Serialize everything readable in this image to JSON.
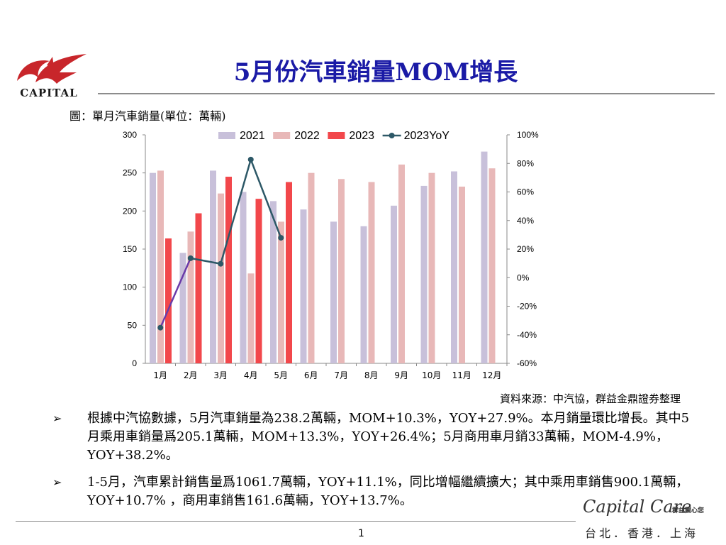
{
  "header": {
    "logo_text": "CAPITAL",
    "title": "5月份汽車銷量MOM增長",
    "subtitle": "圖：單月汽車銷量(單位：萬輛)"
  },
  "chart_data": {
    "type": "bar",
    "title": "",
    "categories": [
      "1月",
      "2月",
      "3月",
      "4月",
      "5月",
      "6月",
      "7月",
      "8月",
      "9月",
      "10月",
      "11月",
      "12月"
    ],
    "series": [
      {
        "name": "2021",
        "type": "bar",
        "color": "#c8c0da",
        "values": [
          250,
          145,
          253,
          225,
          213,
          202,
          186,
          180,
          207,
          233,
          252,
          278
        ]
      },
      {
        "name": "2022",
        "type": "bar",
        "color": "#e8b8b8",
        "values": [
          253,
          173,
          223,
          118,
          186,
          250,
          242,
          238,
          261,
          250,
          232,
          256
        ]
      },
      {
        "name": "2023",
        "type": "bar",
        "color": "#f2474b",
        "values": [
          164,
          197,
          245,
          216,
          238,
          null,
          null,
          null,
          null,
          null,
          null,
          null
        ]
      },
      {
        "name": "2023YoY",
        "type": "line",
        "axis": "right",
        "color": "#2d5867",
        "values": [
          -35,
          13.6,
          9.7,
          82.7,
          27.9,
          null,
          null,
          null,
          null,
          null,
          null,
          null
        ]
      }
    ],
    "y_left": {
      "min": 0,
      "max": 300,
      "ticks": [
        "0",
        "50",
        "100",
        "150",
        "200",
        "250",
        "300"
      ]
    },
    "y_right": {
      "min": -60,
      "max": 100,
      "ticks": [
        "-60%",
        "-40%",
        "-20%",
        "0%",
        "20%",
        "40%",
        "60%",
        "80%",
        "100%"
      ]
    },
    "grid": false,
    "legend_position": "top"
  },
  "source_text": "資料來源：中汽協，群益金鼎證券整理",
  "bullets": [
    {
      "marker": "➢",
      "text": "根據中汽協數據，5月汽車銷量為238.2萬輛，MOM+10.3%，YOY+27.9%。本月銷量環比增長。其中5月乘用車銷量爲205.1萬輛，MOM+13.3%，YOY+26.4%；5月商用車月銷33萬輛，MOM-4.9%，YOY+38.2%。"
    },
    {
      "marker": "➢",
      "text": "1-5月，汽車累計銷售量爲1061.7萬輛，YOY+11.1%，同比增幅繼續擴大；其中乘用車銷售900.1萬輛，YOY+10.7% ，商用車銷售161.6萬輛，YOY+13.7%。"
    }
  ],
  "footer": {
    "brand": "Capital Care",
    "brand_tag": "群益關心您",
    "page_number": "1",
    "cities": "台北．香港．上海"
  },
  "colors": {
    "title": "#1a1aa6",
    "logo_red": "#c8262b",
    "rule": "#8c8c8c"
  }
}
